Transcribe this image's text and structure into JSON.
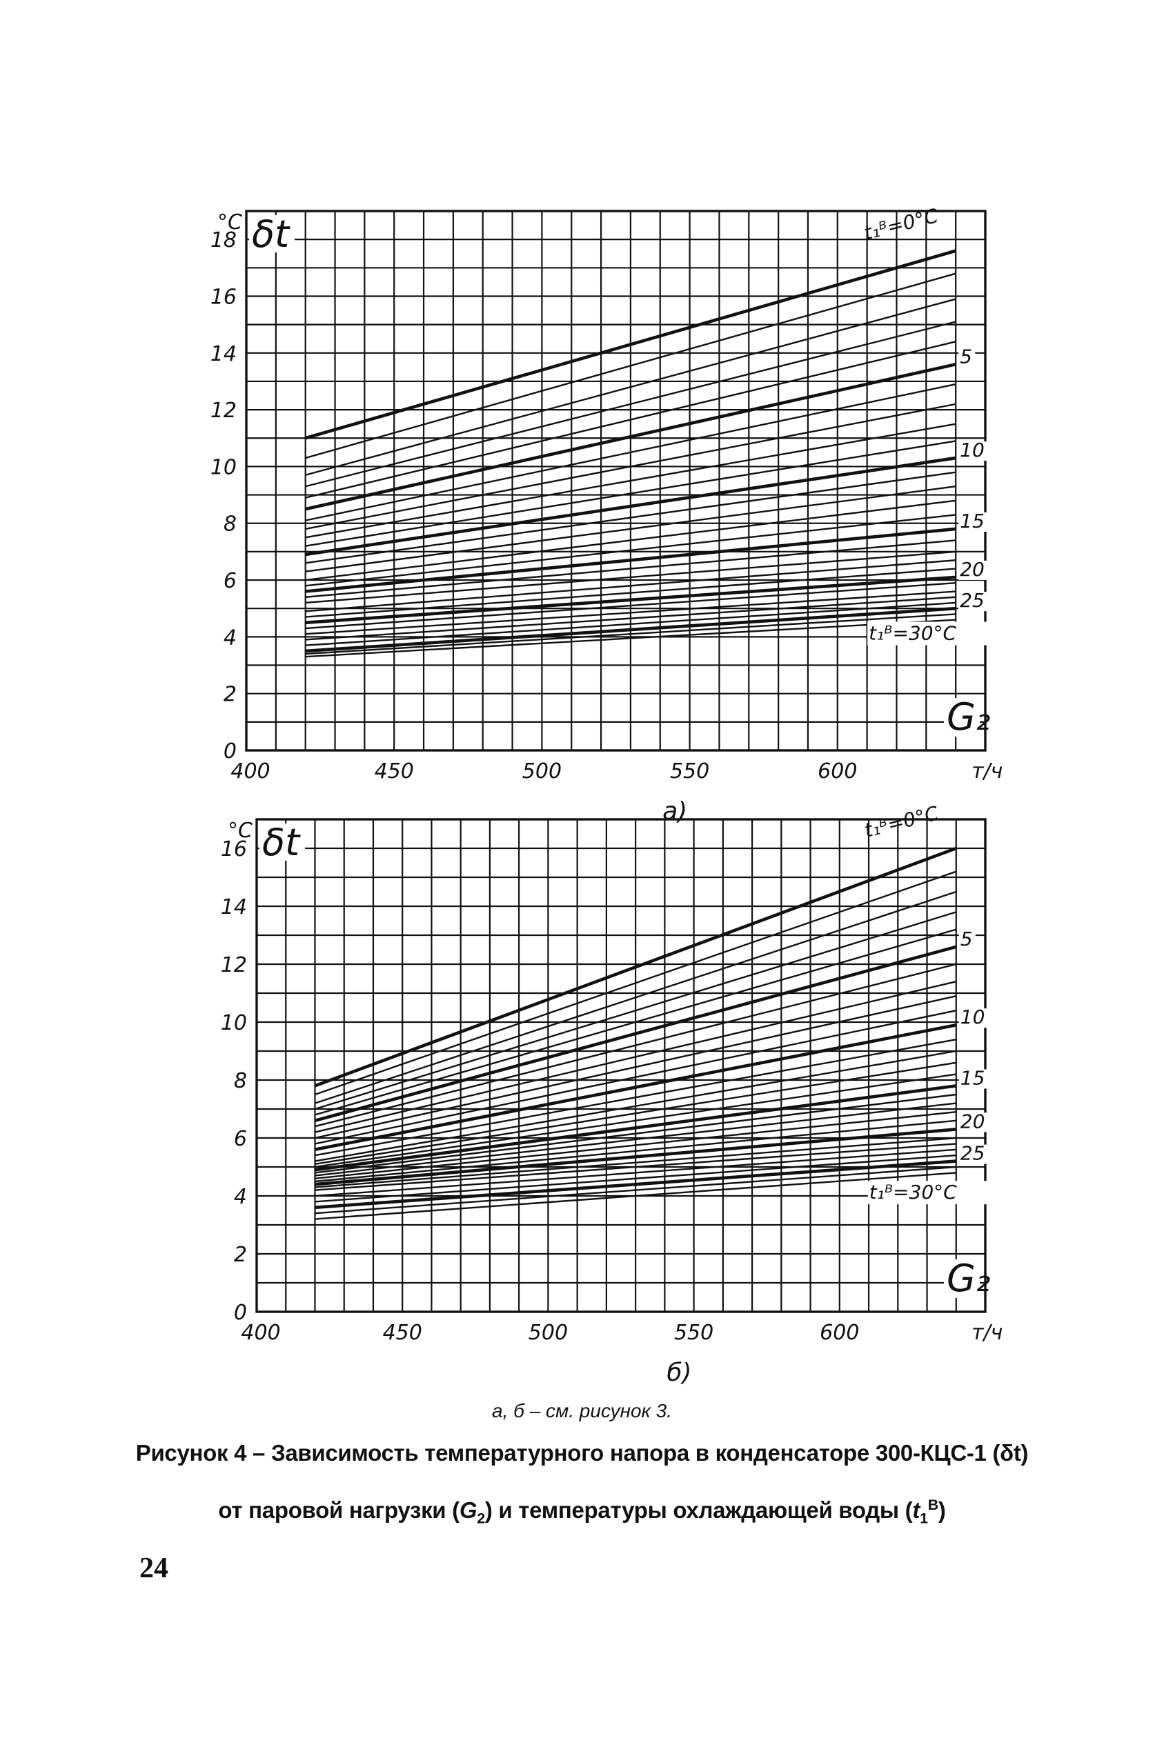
{
  "chart_data": [
    {
      "type": "line",
      "panel_label": "а)",
      "y_symbol": "δt",
      "y_unit": "°С",
      "x_symbol": "G₂",
      "x_unit": "т/ч",
      "xlim": [
        400,
        650
      ],
      "ylim": [
        0,
        19
      ],
      "x_ticks": [
        "400",
        "450",
        "500",
        "550",
        "600"
      ],
      "y_ticks": [
        "0",
        "2",
        "4",
        "6",
        "8",
        "10",
        "12",
        "14",
        "16",
        "18"
      ],
      "x": [
        420,
        640
      ],
      "series_label_top": "t₁ᴮ=0°С",
      "series_label_bottom": "t₁ᴮ=30°С",
      "series_end_labels": [
        "5",
        "10",
        "15",
        "20",
        "25"
      ],
      "series": [
        {
          "values": [
            11.0,
            17.6
          ]
        },
        {
          "values": [
            10.3,
            16.8
          ]
        },
        {
          "values": [
            9.7,
            15.9
          ]
        },
        {
          "values": [
            9.3,
            15.1
          ]
        },
        {
          "values": [
            8.9,
            14.4
          ]
        },
        {
          "values": [
            8.5,
            13.6
          ]
        },
        {
          "values": [
            8.1,
            12.9
          ]
        },
        {
          "values": [
            7.8,
            12.2
          ]
        },
        {
          "values": [
            7.5,
            11.5
          ]
        },
        {
          "values": [
            7.2,
            10.9
          ]
        },
        {
          "values": [
            6.9,
            10.3
          ]
        },
        {
          "values": [
            6.6,
            9.8
          ]
        },
        {
          "values": [
            6.3,
            9.3
          ]
        },
        {
          "values": [
            6.0,
            8.8
          ]
        },
        {
          "values": [
            5.8,
            8.3
          ]
        },
        {
          "values": [
            5.6,
            7.8
          ]
        },
        {
          "values": [
            5.4,
            7.4
          ]
        },
        {
          "values": [
            5.2,
            7.0
          ]
        },
        {
          "values": [
            4.9,
            6.7
          ]
        },
        {
          "values": [
            4.7,
            6.4
          ]
        },
        {
          "values": [
            4.5,
            6.1
          ]
        },
        {
          "values": [
            4.3,
            5.9
          ]
        },
        {
          "values": [
            4.1,
            5.6
          ]
        },
        {
          "values": [
            3.9,
            5.4
          ]
        },
        {
          "values": [
            3.7,
            5.2
          ]
        },
        {
          "values": [
            3.5,
            5.0
          ]
        },
        {
          "values": [
            3.4,
            4.8
          ]
        },
        {
          "values": [
            3.3,
            4.6
          ]
        }
      ],
      "bold_series_index": [
        0,
        5,
        10,
        15,
        20,
        25
      ]
    },
    {
      "type": "line",
      "panel_label": "б)",
      "y_symbol": "δt",
      "y_unit": "°С",
      "x_symbol": "G₂",
      "x_unit": "т/ч",
      "xlim": [
        400,
        650
      ],
      "ylim": [
        0,
        17
      ],
      "x_ticks": [
        "400",
        "450",
        "500",
        "550",
        "600"
      ],
      "y_ticks": [
        "0",
        "2",
        "4",
        "6",
        "8",
        "10",
        "12",
        "14",
        "16"
      ],
      "x": [
        420,
        640
      ],
      "series_label_top": "t₁ᴮ=0°С",
      "series_label_bottom": "t₁ᴮ=30°С",
      "series_end_labels": [
        "5",
        "10",
        "15",
        "20",
        "25"
      ],
      "series": [
        {
          "values": [
            7.8,
            16.0
          ]
        },
        {
          "values": [
            7.5,
            15.2
          ]
        },
        {
          "values": [
            7.2,
            14.5
          ]
        },
        {
          "values": [
            7.0,
            13.8
          ]
        },
        {
          "values": [
            6.8,
            13.2
          ]
        },
        {
          "values": [
            6.6,
            12.6
          ]
        },
        {
          "values": [
            6.4,
            12.0
          ]
        },
        {
          "values": [
            6.2,
            11.4
          ]
        },
        {
          "values": [
            6.0,
            10.9
          ]
        },
        {
          "values": [
            5.8,
            10.4
          ]
        },
        {
          "values": [
            5.6,
            9.9
          ]
        },
        {
          "values": [
            5.4,
            9.4
          ]
        },
        {
          "values": [
            5.2,
            9.0
          ]
        },
        {
          "values": [
            5.1,
            8.6
          ]
        },
        {
          "values": [
            5.0,
            8.2
          ]
        },
        {
          "values": [
            4.9,
            7.8
          ]
        },
        {
          "values": [
            4.8,
            7.5
          ]
        },
        {
          "values": [
            4.7,
            7.2
          ]
        },
        {
          "values": [
            4.6,
            6.9
          ]
        },
        {
          "values": [
            4.5,
            6.6
          ]
        },
        {
          "values": [
            4.4,
            6.3
          ]
        },
        {
          "values": [
            4.3,
            6.0
          ]
        },
        {
          "values": [
            4.2,
            5.8
          ]
        },
        {
          "values": [
            4.0,
            5.6
          ]
        },
        {
          "values": [
            3.8,
            5.4
          ]
        },
        {
          "values": [
            3.6,
            5.2
          ]
        },
        {
          "values": [
            3.4,
            5.0
          ]
        },
        {
          "values": [
            3.2,
            4.8
          ]
        }
      ],
      "bold_series_index": [
        0,
        5,
        10,
        15,
        20,
        25
      ]
    }
  ],
  "note": "а, б – см. рисунок 3.",
  "caption_line1": "Рисунок 4 – Зависимость температурного напора в конденсаторе 300-КЦС-1 (δt)",
  "caption_line2_parts": [
    "от паровой нагрузки (",
    "G",
    "2",
    ") и температуры охлаждающей воды (",
    "t",
    "1",
    "В",
    ")"
  ],
  "page_number": "24"
}
